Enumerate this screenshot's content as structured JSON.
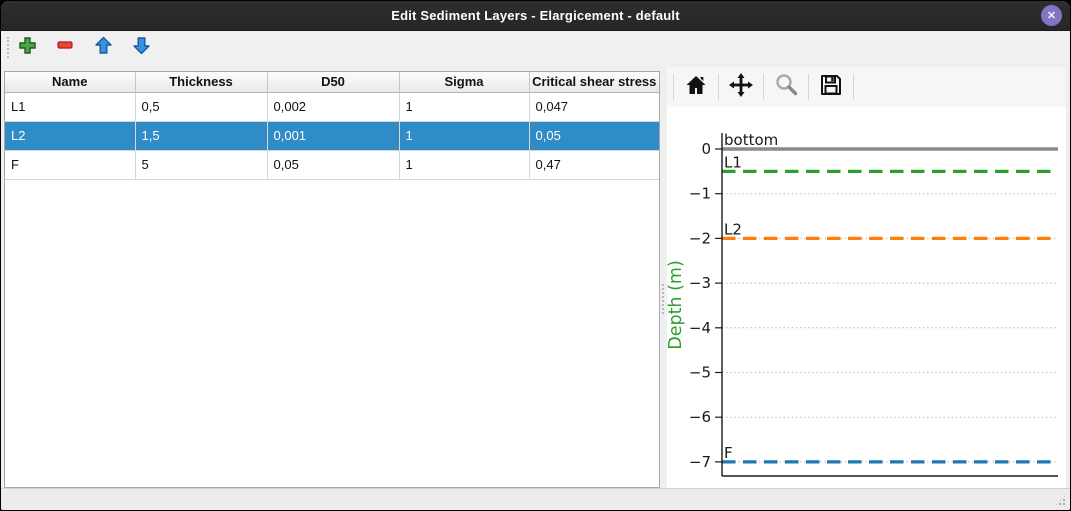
{
  "window": {
    "title": "Edit Sediment Layers - Elargicement - default",
    "close_glyph": "✕"
  },
  "colors": {
    "titlebar_bg": "#2a2a2a",
    "close_button": "#8273c5",
    "selection_highlight": "#308cc6",
    "selection_text": "#ffffff",
    "ylabel_green": "#2ca02c"
  },
  "toolbar": {
    "buttons": [
      {
        "name": "add-layer-button",
        "icon": "plus-icon"
      },
      {
        "name": "remove-layer-button",
        "icon": "minus-icon"
      },
      {
        "name": "move-layer-up-button",
        "icon": "arrow-up-icon"
      },
      {
        "name": "move-layer-down-button",
        "icon": "arrow-down-icon"
      }
    ]
  },
  "table": {
    "columns": [
      "Name",
      "Thickness",
      "D50",
      "Sigma",
      "Critical shear stress"
    ],
    "rows": [
      {
        "cells": [
          "L1",
          "0,5",
          "0,002",
          "1",
          "0,047"
        ],
        "selected": false
      },
      {
        "cells": [
          "L2",
          "1,5",
          "0,001",
          "1",
          "0,05"
        ],
        "selected": true
      },
      {
        "cells": [
          "F",
          "5",
          "0,05",
          "1",
          "0,47"
        ],
        "selected": false
      }
    ]
  },
  "plot_toolbar": {
    "buttons": [
      {
        "name": "plot-home-button",
        "icon": "home-icon"
      },
      {
        "name": "plot-pan-button",
        "icon": "pan-icon"
      },
      {
        "name": "plot-zoom-button",
        "icon": "magnifier-icon"
      },
      {
        "name": "plot-save-button",
        "icon": "save-icon"
      }
    ]
  },
  "chart_data": {
    "type": "line",
    "title": "",
    "xlabel": "",
    "ylabel": "Depth (m)",
    "ylim": [
      -7.33,
      0.36
    ],
    "yticks": [
      0,
      -1,
      -2,
      -3,
      -4,
      -5,
      -6,
      -7
    ],
    "ytick_labels": [
      "0",
      "−1",
      "−2",
      "−3",
      "−4",
      "−5",
      "−6",
      "−7"
    ],
    "grid": "horizontal dotted at integer ticks",
    "legend_position": "inline-labels-above-lines",
    "series": [
      {
        "name": "bottom",
        "depth": 0,
        "style": "solid",
        "color": "#8a8a8a",
        "width": 3.4
      },
      {
        "name": "L1",
        "depth": -0.5,
        "style": "dashed",
        "color": "#2ca02c",
        "width": 3.2
      },
      {
        "name": "L2",
        "depth": -2.0,
        "style": "dashed",
        "color": "#ff7f0e",
        "width": 3.2
      },
      {
        "name": "F",
        "depth": -7.0,
        "style": "dashed",
        "color": "#1f77b4",
        "width": 3.2
      }
    ]
  }
}
